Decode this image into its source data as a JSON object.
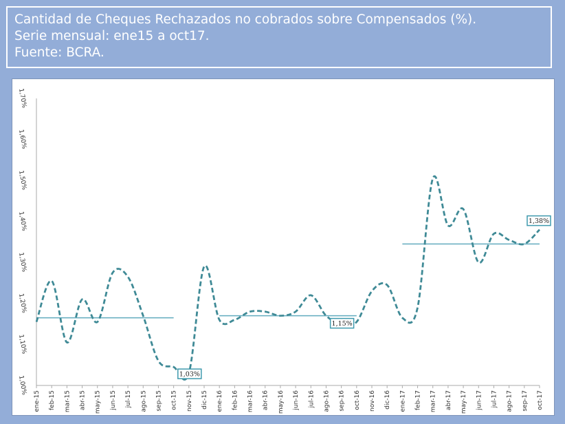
{
  "header": {
    "line1": "Cantidad de Cheques Rechazados no cobrados sobre Compensados (%).",
    "line2": "Serie mensual: ene15 a oct17.",
    "line3": "Fuente: BCRA."
  },
  "chart_data": {
    "type": "line",
    "title": "Cantidad de Cheques Rechazados no cobrados sobre Compensados (%).",
    "ylim": [
      1.0,
      1.7
    ],
    "yticks": [
      "1,00%",
      "1,10%",
      "1,20%",
      "1,30%",
      "1,40%",
      "1,50%",
      "1,60%",
      "1,70%"
    ],
    "grid": false,
    "line_color": "#3f8a96",
    "avg_color": "#6bb0c2",
    "categories": [
      "ene-15",
      "feb-15",
      "mar-15",
      "abr-15",
      "may-15",
      "jun-15",
      "jul-15",
      "ago-15",
      "sep-15",
      "oct-15",
      "nov-15",
      "dic-15",
      "ene-16",
      "feb-16",
      "mar-16",
      "abr-16",
      "may-16",
      "jun-16",
      "jul-16",
      "ago-16",
      "sep-16",
      "oct-16",
      "nov-16",
      "dic-16",
      "ene-17",
      "feb-17",
      "mar-17",
      "abr-17",
      "may-17",
      "jun-17",
      "jul-17",
      "ago-17",
      "sep-17",
      "oct-17"
    ],
    "values": [
      1.155,
      1.255,
      1.105,
      1.21,
      1.155,
      1.275,
      1.265,
      1.17,
      1.06,
      1.045,
      1.03,
      1.29,
      1.16,
      1.16,
      1.18,
      1.18,
      1.17,
      1.18,
      1.22,
      1.17,
      1.15,
      1.155,
      1.23,
      1.245,
      1.165,
      1.19,
      1.505,
      1.39,
      1.43,
      1.3,
      1.37,
      1.355,
      1.345,
      1.38
    ],
    "averages": [
      {
        "from": "ene-15",
        "to": "oct-15",
        "value": 1.165
      },
      {
        "from": "ene-16",
        "to": "oct-16",
        "value": 1.17
      },
      {
        "from": "ene-17",
        "to": "oct-17",
        "value": 1.345
      }
    ],
    "data_labels": [
      {
        "category": "nov-15",
        "text": "1,03%"
      },
      {
        "category": "sep-16",
        "text": "1,15%"
      },
      {
        "category": "oct-17",
        "text": "1,38%"
      }
    ]
  }
}
